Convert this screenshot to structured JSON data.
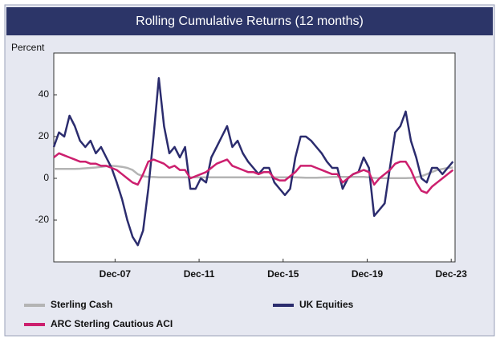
{
  "chart_data": {
    "type": "line",
    "title": "Rolling Cumulative Returns (12 months)",
    "ylabel": "Percent",
    "x": [
      2005,
      2005.25,
      2005.5,
      2005.75,
      2006,
      2006.25,
      2006.5,
      2006.75,
      2007,
      2007.25,
      2007.5,
      2007.75,
      2008,
      2008.25,
      2008.5,
      2008.75,
      2009,
      2009.25,
      2009.5,
      2009.75,
      2010,
      2010.25,
      2010.5,
      2010.75,
      2011,
      2011.25,
      2011.5,
      2011.75,
      2012,
      2012.25,
      2012.5,
      2012.75,
      2013,
      2013.25,
      2013.5,
      2013.75,
      2014,
      2014.25,
      2014.5,
      2014.75,
      2015,
      2015.25,
      2015.5,
      2015.75,
      2016,
      2016.25,
      2016.5,
      2016.75,
      2017,
      2017.25,
      2017.5,
      2017.75,
      2018,
      2018.25,
      2018.5,
      2018.75,
      2019,
      2019.25,
      2019.5,
      2019.75,
      2020,
      2020.25,
      2020.5,
      2020.75,
      2021,
      2021.25,
      2021.5,
      2021.75,
      2022,
      2022.25,
      2022.5,
      2022.75,
      2023,
      2023.25,
      2023.5,
      2023.75,
      2024
    ],
    "series": [
      {
        "name": "Sterling Cash",
        "color": "#b4b4b4",
        "values": [
          4.5,
          4.5,
          4.5,
          4.5,
          4.5,
          4.6,
          4.8,
          5,
          5.2,
          5.5,
          5.8,
          6,
          5.8,
          5.5,
          5,
          4,
          2,
          1,
          0.7,
          0.6,
          0.5,
          0.5,
          0.5,
          0.5,
          0.5,
          0.5,
          0.5,
          0.5,
          0.5,
          0.5,
          0.5,
          0.5,
          0.5,
          0.5,
          0.5,
          0.5,
          0.5,
          0.5,
          0.5,
          0.5,
          0.5,
          0.5,
          0.5,
          0.5,
          0.5,
          0.5,
          0.5,
          0.4,
          0.3,
          0.3,
          0.3,
          0.4,
          0.5,
          0.6,
          0.7,
          0.7,
          0.7,
          0.7,
          0.7,
          0.7,
          0.5,
          0.2,
          0.1,
          0.1,
          0.1,
          0.1,
          0.1,
          0.1,
          0.2,
          0.5,
          1,
          2,
          3,
          4,
          4.5,
          5,
          5.2
        ]
      },
      {
        "name": "UK Equities",
        "color": "#2b2c6e",
        "values": [
          15,
          22,
          20,
          30,
          25,
          18,
          15,
          18,
          12,
          15,
          10,
          5,
          -2,
          -10,
          -20,
          -28,
          -32,
          -25,
          -5,
          20,
          48,
          25,
          12,
          15,
          10,
          15,
          -5,
          -5,
          0,
          -2,
          10,
          15,
          20,
          25,
          15,
          18,
          12,
          8,
          5,
          2,
          5,
          5,
          -2,
          -5,
          -8,
          -5,
          10,
          20,
          20,
          18,
          15,
          12,
          8,
          5,
          5,
          -5,
          0,
          2,
          3,
          10,
          5,
          -18,
          -15,
          -12,
          5,
          22,
          25,
          32,
          18,
          10,
          0,
          -2,
          5,
          5,
          2,
          5,
          8
        ]
      },
      {
        "name": "ARC Sterling Cautious ACI",
        "color": "#cc1f6e",
        "values": [
          10,
          12,
          11,
          10,
          9,
          8,
          8,
          7,
          7,
          6,
          6,
          5,
          4,
          2,
          0,
          -2,
          -3,
          2,
          8,
          9,
          8,
          7,
          5,
          6,
          4,
          4,
          0,
          1,
          2,
          3,
          5,
          7,
          8,
          9,
          6,
          5,
          4,
          3,
          3,
          2,
          3,
          3,
          0,
          -1,
          -1,
          1,
          3,
          6,
          6,
          6,
          5,
          4,
          3,
          2,
          2,
          -2,
          0,
          2,
          3,
          4,
          3,
          -3,
          0,
          2,
          4,
          7,
          8,
          8,
          4,
          -2,
          -6,
          -7,
          -4,
          -2,
          0,
          2,
          4
        ]
      }
    ],
    "xlim": [
      2005,
      2024.1
    ],
    "xticks": [
      {
        "value": 2007.917,
        "label": "Dec-07"
      },
      {
        "value": 2011.917,
        "label": "Dec-11"
      },
      {
        "value": 2015.917,
        "label": "Dec-15"
      },
      {
        "value": 2019.917,
        "label": "Dec-19"
      },
      {
        "value": 2023.917,
        "label": "Dec-23"
      }
    ],
    "ylim": [
      -40,
      60
    ],
    "yticks": [
      -20,
      0,
      20,
      40
    ],
    "grid": false
  }
}
